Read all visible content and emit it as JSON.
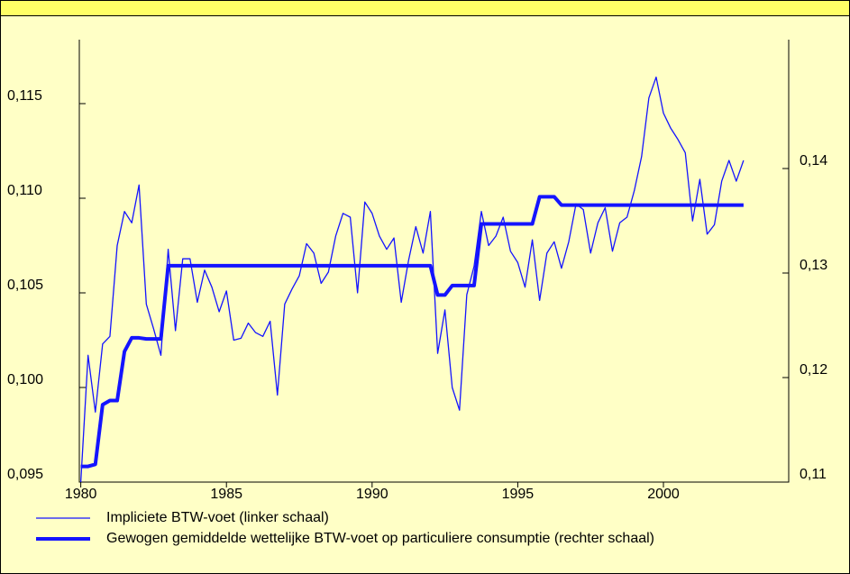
{
  "chart_data": {
    "type": "line",
    "x": [
      1980,
      1980.25,
      1980.5,
      1980.75,
      1981,
      1981.25,
      1981.5,
      1981.75,
      1982,
      1982.25,
      1982.5,
      1982.75,
      1983,
      1983.25,
      1983.5,
      1983.75,
      1984,
      1984.25,
      1984.5,
      1984.75,
      1985,
      1985.25,
      1985.5,
      1985.75,
      1986,
      1986.25,
      1986.5,
      1986.75,
      1987,
      1987.25,
      1987.5,
      1987.75,
      1988,
      1988.25,
      1988.5,
      1988.75,
      1989,
      1989.25,
      1989.5,
      1989.75,
      1990,
      1990.25,
      1990.5,
      1990.75,
      1991,
      1991.25,
      1991.5,
      1991.75,
      1992,
      1992.25,
      1992.5,
      1992.75,
      1993,
      1993.25,
      1993.5,
      1993.75,
      1994,
      1994.25,
      1994.5,
      1994.75,
      1995,
      1995.25,
      1995.5,
      1995.75,
      1996,
      1996.25,
      1996.5,
      1996.75,
      1997,
      1997.25,
      1997.5,
      1997.75,
      1998,
      1998.25,
      1998.5,
      1998.75,
      1999,
      1999.25,
      1999.5,
      1999.75,
      2000,
      2000.25,
      2000.5,
      2000.75,
      2001,
      2001.25,
      2001.5,
      2001.75,
      2002,
      2002.25,
      2002.5,
      2002.75
    ],
    "series": [
      {
        "name": "Impliciete BTW-voet (linker schaal)",
        "color": "#1414ff",
        "width": 1.3,
        "values": [
          0.095,
          0.1017,
          0.0987,
          0.1023,
          0.1027,
          0.1075,
          0.1093,
          0.1087,
          0.1107,
          0.1044,
          0.1031,
          0.1017,
          0.1073,
          0.103,
          0.1068,
          0.1068,
          0.1045,
          0.1062,
          0.1053,
          0.104,
          0.1051,
          0.1025,
          0.1026,
          0.1034,
          0.1029,
          0.1027,
          0.1035,
          0.0996,
          0.1044,
          0.1052,
          0.1059,
          0.1076,
          0.1071,
          0.1055,
          0.1061,
          0.108,
          0.1092,
          0.109,
          0.105,
          0.1098,
          0.1092,
          0.108,
          0.1073,
          0.1079,
          0.1045,
          0.1067,
          0.1085,
          0.1071,
          0.1093,
          0.1018,
          0.1041,
          0.1,
          0.0988,
          0.1049,
          0.1064,
          0.1093,
          0.1075,
          0.108,
          0.109,
          0.1072,
          0.1066,
          0.1053,
          0.1078,
          0.1046,
          0.1071,
          0.1077,
          0.1063,
          0.1077,
          0.1097,
          0.1094,
          0.1071,
          0.1087,
          0.1095,
          0.1072,
          0.1087,
          0.109,
          0.1104,
          0.1122,
          0.1153,
          0.1164,
          0.1145,
          0.1137,
          0.1131,
          0.1124,
          0.1088,
          0.111,
          0.1081,
          0.1086,
          0.1109,
          0.112,
          0.1109,
          0.112
        ]
      },
      {
        "name": "Gewogen gemiddelde wettelijke BTW-voet op particuliere consumptie (rechter schaal)",
        "color": "#1414ff",
        "width": 4,
        "axis": "y2",
        "values": [
          0.1115,
          0.1115,
          0.1117,
          0.1174,
          0.1178,
          0.1178,
          0.1225,
          0.1238,
          0.1238,
          0.1237,
          0.1237,
          0.1237,
          0.1307,
          0.1307,
          0.1307,
          0.1307,
          0.1307,
          0.1307,
          0.1307,
          0.1307,
          0.1307,
          0.1307,
          0.1307,
          0.1307,
          0.1307,
          0.1307,
          0.1307,
          0.1307,
          0.1307,
          0.1307,
          0.1307,
          0.1307,
          0.1307,
          0.1307,
          0.1307,
          0.1307,
          0.1307,
          0.1307,
          0.1307,
          0.1307,
          0.1307,
          0.1307,
          0.1307,
          0.1307,
          0.1307,
          0.1307,
          0.1307,
          0.1307,
          0.1307,
          0.1279,
          0.1279,
          0.1288,
          0.1288,
          0.1288,
          0.1288,
          0.1347,
          0.1347,
          0.1347,
          0.1347,
          0.1347,
          0.1347,
          0.1347,
          0.1347,
          0.1373,
          0.1373,
          0.1373,
          0.1365,
          0.1365,
          0.1365,
          0.1365,
          0.1365,
          0.1365,
          0.1365,
          0.1365,
          0.1365,
          0.1365,
          0.1365,
          0.1365,
          0.1365,
          0.1365,
          0.1365,
          0.1365,
          0.1365,
          0.1365,
          0.1365,
          0.1365,
          0.1365,
          0.1365,
          0.1365,
          0.1365,
          0.1365,
          0.1365
        ]
      }
    ],
    "xlim": [
      1979.95,
      2004.3
    ],
    "xticks": [
      1980,
      1985,
      1990,
      1995,
      2000
    ],
    "ylim": [
      0.095,
      0.11838
    ],
    "yticks": [
      {
        "value": 0.095,
        "label": "0,095"
      },
      {
        "value": 0.1,
        "label": "0,100"
      },
      {
        "value": 0.105,
        "label": "0,105"
      },
      {
        "value": 0.11,
        "label": "0,110"
      },
      {
        "value": 0.115,
        "label": "0,115"
      }
    ],
    "y2lim": [
      0.11,
      0.15233
    ],
    "y2ticks": [
      {
        "value": 0.11,
        "label": "0,11"
      },
      {
        "value": 0.12,
        "label": "0,12"
      },
      {
        "value": 0.13,
        "label": "0,13"
      },
      {
        "value": 0.14,
        "label": "0,14"
      }
    ]
  }
}
